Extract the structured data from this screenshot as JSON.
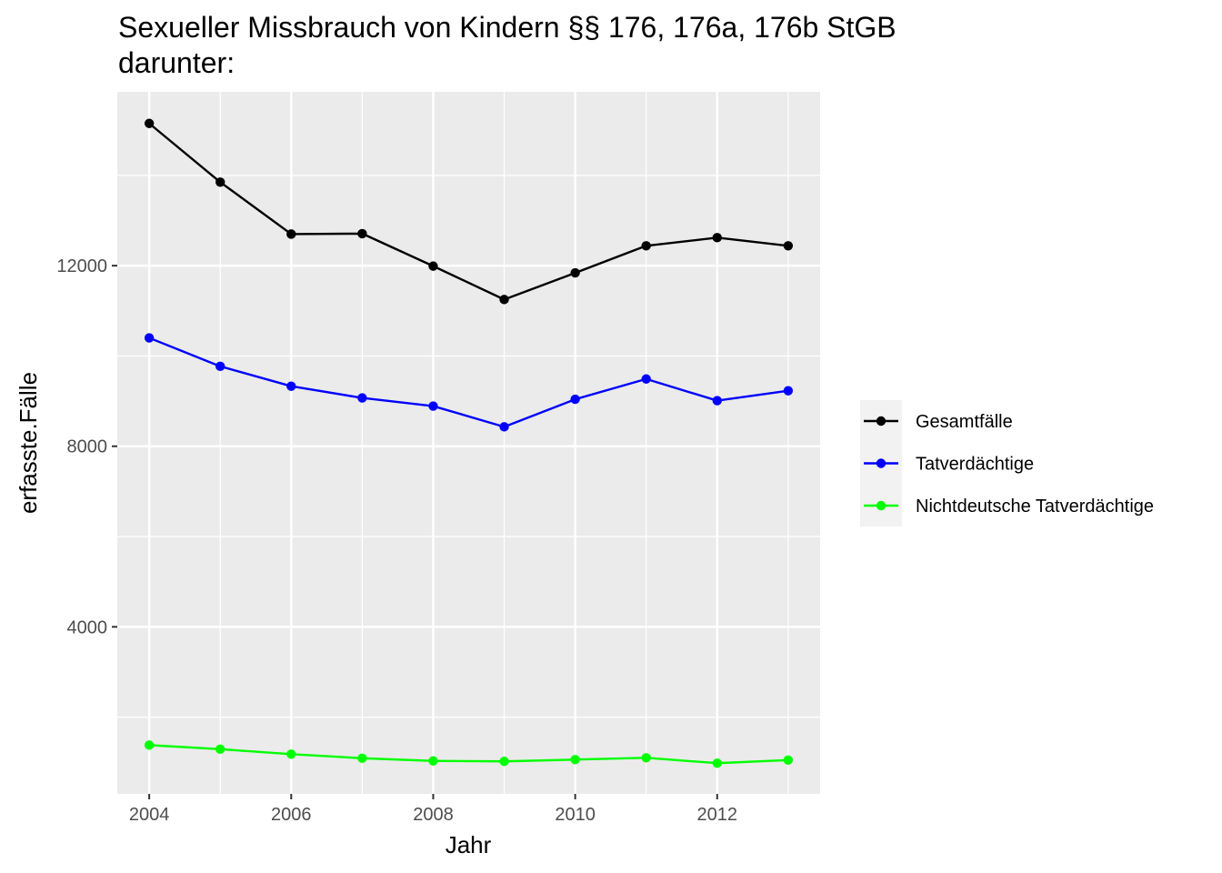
{
  "chart_data": {
    "type": "line",
    "title": "Sexueller Missbrauch von Kindern §§ 176, 176a, 176b StGB",
    "subtitle": "darunter:",
    "xlabel": "Jahr",
    "ylabel": "erfasste.Fälle",
    "x": [
      2004,
      2005,
      2006,
      2007,
      2008,
      2009,
      2010,
      2011,
      2012,
      2013
    ],
    "xlim": [
      2003.55,
      2013.45
    ],
    "ylim": [
      300,
      15850
    ],
    "x_ticks": [
      2004,
      2006,
      2008,
      2010,
      2012
    ],
    "x_tick_labels": [
      "2004",
      "2006",
      "2008",
      "2010",
      "2012"
    ],
    "y_ticks": [
      4000,
      8000,
      12000
    ],
    "y_tick_labels": [
      "4000",
      "8000",
      "12000"
    ],
    "grid": true,
    "legend_position": "right",
    "series": [
      {
        "name": "Gesamtfälle",
        "color": "#000000",
        "values": [
          15150,
          13850,
          12700,
          12710,
          11990,
          11250,
          11840,
          12440,
          12620,
          12440
        ]
      },
      {
        "name": "Tatverdächtige",
        "color": "#0000ff",
        "values": [
          10400,
          9770,
          9330,
          9070,
          8890,
          8430,
          9040,
          9490,
          9010,
          9230
        ]
      },
      {
        "name": "Nichtdeutsche Tatverdächtige",
        "color": "#00ff00",
        "values": [
          1380,
          1290,
          1180,
          1090,
          1030,
          1020,
          1060,
          1100,
          980,
          1050
        ]
      }
    ]
  }
}
